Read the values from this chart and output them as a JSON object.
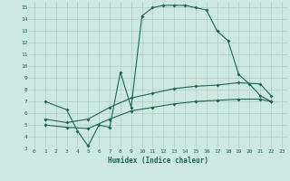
{
  "xlabel": "Humidex (Indice chaleur)",
  "bg_color": "#cce8e0",
  "grid_color": "#aaccC4",
  "line_color": "#1a6655",
  "xlim": [
    -0.5,
    23.5
  ],
  "ylim": [
    3,
    15.5
  ],
  "xticks": [
    0,
    1,
    2,
    3,
    4,
    5,
    6,
    7,
    8,
    9,
    10,
    11,
    12,
    13,
    14,
    15,
    16,
    17,
    18,
    19,
    20,
    21,
    22,
    23
  ],
  "yticks": [
    3,
    4,
    5,
    6,
    7,
    8,
    9,
    10,
    11,
    12,
    13,
    14,
    15
  ],
  "line1_x": [
    1,
    3,
    4,
    5,
    6,
    7,
    8,
    9,
    10,
    11,
    12,
    13,
    14,
    15,
    16,
    17,
    18,
    19,
    20,
    21,
    22
  ],
  "line1_y": [
    7.0,
    6.3,
    4.5,
    3.2,
    5.0,
    4.8,
    9.5,
    6.5,
    14.3,
    15.0,
    15.2,
    15.2,
    15.2,
    15.0,
    14.8,
    13.0,
    12.2,
    9.3,
    8.5,
    7.5,
    7.0
  ],
  "line2_x": [
    1,
    3,
    5,
    7,
    9,
    11,
    13,
    15,
    17,
    19,
    21,
    22
  ],
  "line2_y": [
    5.5,
    5.2,
    5.5,
    6.5,
    7.3,
    7.7,
    8.1,
    8.3,
    8.4,
    8.6,
    8.5,
    7.5
  ],
  "line3_x": [
    1,
    3,
    5,
    7,
    9,
    11,
    13,
    15,
    17,
    19,
    21,
    22
  ],
  "line3_y": [
    5.0,
    4.8,
    4.7,
    5.5,
    6.2,
    6.5,
    6.8,
    7.0,
    7.1,
    7.2,
    7.2,
    7.0
  ]
}
